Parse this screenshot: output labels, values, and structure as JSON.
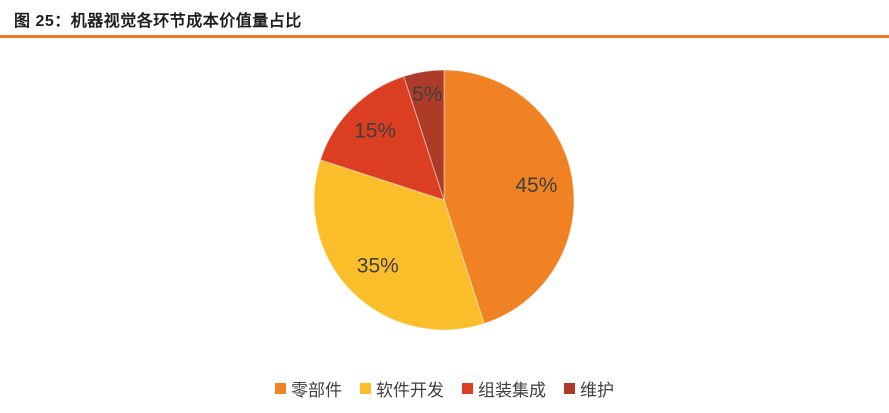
{
  "header": {
    "title": "图 25：机器视觉各环节成本价值量占比",
    "underline_color": "#E97A22"
  },
  "chart_data": {
    "type": "pie",
    "title": "机器视觉各环节成本价值量占比",
    "segments": [
      {
        "label": "零部件",
        "value": 45,
        "display": "45%",
        "color": "#F08223"
      },
      {
        "label": "软件开发",
        "value": 35,
        "display": "35%",
        "color": "#FBBE2B"
      },
      {
        "label": "组装集成",
        "value": 15,
        "display": "15%",
        "color": "#DB3E20"
      },
      {
        "label": "维护",
        "value": 5,
        "display": "5%",
        "color": "#AE3A28"
      }
    ],
    "start_angle_deg": 0,
    "direction": "clockwise",
    "label_color": "#404040",
    "label_radius": [
      0.72,
      0.72,
      0.75,
      0.82
    ],
    "legend_position": "bottom",
    "slice_border_color": "rgba(255,255,255,0.45)"
  }
}
